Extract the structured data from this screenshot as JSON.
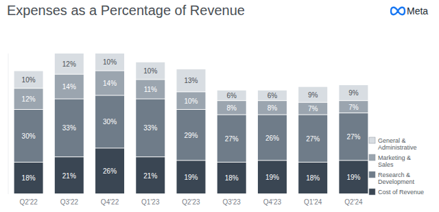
{
  "chart_data": {
    "type": "bar",
    "title": "Expenses as a Percentage of Revenue",
    "logo": "Meta",
    "categories": [
      "Q2'22",
      "Q3'22",
      "Q4'22",
      "Q1'23",
      "Q2'23",
      "Q3'23",
      "Q4'23",
      "Q1'24",
      "Q2'24"
    ],
    "stacked": true,
    "data_labels": true,
    "grid": false,
    "tick_labels": "x",
    "legend": "right",
    "ylim": [
      0,
      80
    ],
    "yticks": [],
    "series": [
      {
        "name": "Cost of Revenue",
        "color": "#3a4653",
        "values": [
          18,
          21,
          26,
          21,
          19,
          18,
          19,
          18,
          19
        ],
        "value_labels": [
          "18%",
          "21%",
          "26%",
          "21%",
          "19%",
          "18%",
          "19%",
          "18%",
          "19%"
        ]
      },
      {
        "name": "Research & Development",
        "color": "#6f7c89",
        "values": [
          30,
          33,
          30,
          33,
          29,
          27,
          26,
          27,
          27
        ],
        "value_labels": [
          "30%",
          "33%",
          "30%",
          "33%",
          "29%",
          "27%",
          "26%",
          "27%",
          "27%"
        ]
      },
      {
        "name": "Marketing & Sales",
        "color": "#9ba5af",
        "values": [
          12,
          14,
          14,
          11,
          10,
          8,
          8,
          7,
          7
        ],
        "value_labels": [
          "12%",
          "14%",
          "14%",
          "11%",
          "10%",
          "8%",
          "8%",
          "7%",
          "7%"
        ]
      },
      {
        "name": "General & Administrative",
        "color": "#d8dde2",
        "values": [
          10,
          12,
          10,
          10,
          13,
          6,
          6,
          9,
          9
        ],
        "value_labels": [
          "10%",
          "12%",
          "10%",
          "10%",
          "13%",
          "6%",
          "6%",
          "9%",
          "9%"
        ]
      }
    ]
  }
}
